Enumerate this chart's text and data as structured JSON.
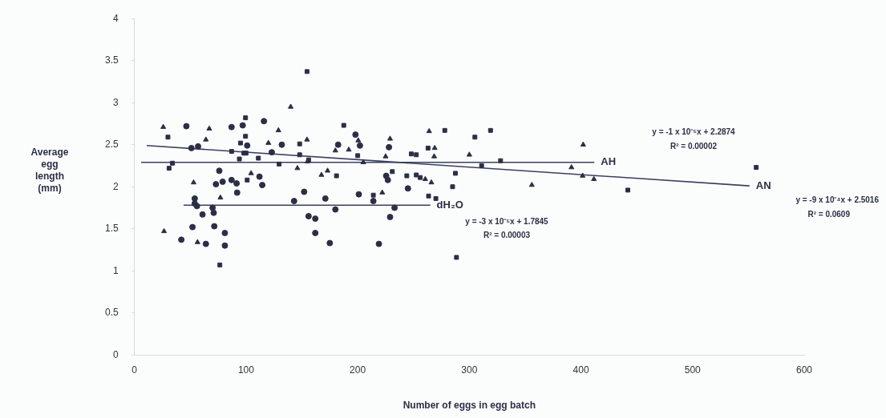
{
  "chart_data": {
    "type": "scatter",
    "xlabel": "Number of eggs in egg batch",
    "ylabel": "Average egg length (mm)",
    "xlim": [
      0,
      600
    ],
    "xticks": [
      0,
      100,
      200,
      300,
      400,
      500,
      600
    ],
    "ylim": [
      0,
      4
    ],
    "yticks": [
      0,
      0.5,
      1,
      1.5,
      2,
      2.5,
      3,
      3.5,
      4
    ],
    "grid": false,
    "legend": false,
    "series": [
      {
        "marker": "circle",
        "color": "#2b2f45",
        "x": [
          46.5,
          87,
          97,
          116,
          51,
          57,
          101,
          76,
          112,
          73,
          79,
          87,
          91.5,
          114.5,
          92,
          54,
          54,
          56,
          70,
          71,
          61,
          71.5,
          52,
          81,
          42,
          64,
          81,
          132,
          182.5,
          198,
          202,
          228,
          123,
          225.5,
          227,
          152,
          171,
          201,
          143,
          214,
          180,
          233,
          156,
          162,
          229,
          162,
          175,
          219,
          245
        ],
        "values": [
          2.72,
          2.71,
          2.73,
          2.78,
          2.46,
          2.48,
          2.49,
          2.19,
          2.12,
          2.03,
          2.06,
          2.08,
          2.04,
          2.02,
          1.93,
          1.86,
          1.8,
          1.77,
          1.75,
          1.69,
          1.67,
          1.53,
          1.52,
          1.45,
          1.37,
          1.32,
          1.3,
          2.5,
          2.5,
          2.62,
          2.49,
          2.47,
          2.41,
          2.13,
          2.08,
          1.94,
          1.86,
          1.91,
          1.83,
          1.83,
          1.73,
          1.75,
          1.65,
          1.62,
          1.64,
          1.45,
          1.33,
          1.32,
          1.98
        ]
      },
      {
        "marker": "triangle",
        "color": "#2b2f45",
        "x": [
          25.8,
          67,
          64,
          120,
          104.5,
          53,
          77,
          26.5,
          56.5,
          140,
          129,
          154.6,
          200.5,
          229,
          180,
          192,
          155,
          205,
          225,
          146,
          167.5,
          173,
          222,
          264,
          269,
          268.5,
          300,
          260.5,
          266,
          356,
          402,
          391.5,
          401.5,
          411.6
        ],
        "values": [
          2.71,
          2.69,
          2.56,
          2.52,
          2.16,
          2.05,
          1.87,
          1.47,
          1.34,
          2.95,
          2.67,
          2.56,
          2.55,
          2.57,
          2.43,
          2.44,
          2.3,
          2.29,
          2.36,
          2.22,
          2.14,
          2.19,
          1.93,
          2.66,
          2.46,
          2.36,
          2.38,
          2.09,
          2.05,
          2.02,
          2.5,
          2.23,
          2.13,
          2.09
        ]
      },
      {
        "marker": "square",
        "color": "#2b2f45",
        "x": [
          99.5,
          30,
          99.5,
          95,
          87,
          98,
          100,
          94,
          111,
          34,
          31,
          101,
          76.5,
          154.6,
          187.5,
          148,
          129.6,
          148,
          156,
          200,
          181,
          231,
          214,
          278,
          319,
          305,
          263,
          248,
          252.5,
          328,
          311,
          244,
          252.5,
          256,
          287.5,
          285,
          263.5,
          270,
          288.5,
          442,
          557
        ],
        "values": [
          2.82,
          2.59,
          2.6,
          2.52,
          2.42,
          2.4,
          2.4,
          2.33,
          2.34,
          2.28,
          2.22,
          2.08,
          1.07,
          3.37,
          2.73,
          2.51,
          2.27,
          2.38,
          2.32,
          2.37,
          2.13,
          2.18,
          1.9,
          2.67,
          2.67,
          2.59,
          2.46,
          2.39,
          2.38,
          2.31,
          2.25,
          2.13,
          2.14,
          2.11,
          2.16,
          2.0,
          1.89,
          1.86,
          1.16,
          1.96,
          2.23
        ]
      },
      {
        "type": "line",
        "name": "AH",
        "marker": "none",
        "line_style": "solid",
        "color": "#3a4060",
        "x": [
          6,
          412
        ],
        "values": [
          2.29,
          2.29
        ]
      },
      {
        "type": "line",
        "name": "AN",
        "marker": "none",
        "line_style": "solid",
        "color": "#3a4060",
        "x": [
          11,
          551
        ],
        "values": [
          2.49,
          2.01
        ]
      },
      {
        "type": "line",
        "name": "dH₂O",
        "marker": "none",
        "line_style": "solid",
        "color": "#3a4060",
        "x": [
          44,
          265
        ],
        "values": [
          1.78,
          1.78
        ]
      }
    ],
    "annotations": [
      "y = -1 x 10⁻⁵x + 2.2874",
      "R² = 0.00002",
      "y = -3 x 10⁻⁵x + 1.7845",
      "R² = 0.00003",
      "y = -9 x 10⁻⁴x + 2.5016",
      "R² = 0.0609"
    ]
  }
}
